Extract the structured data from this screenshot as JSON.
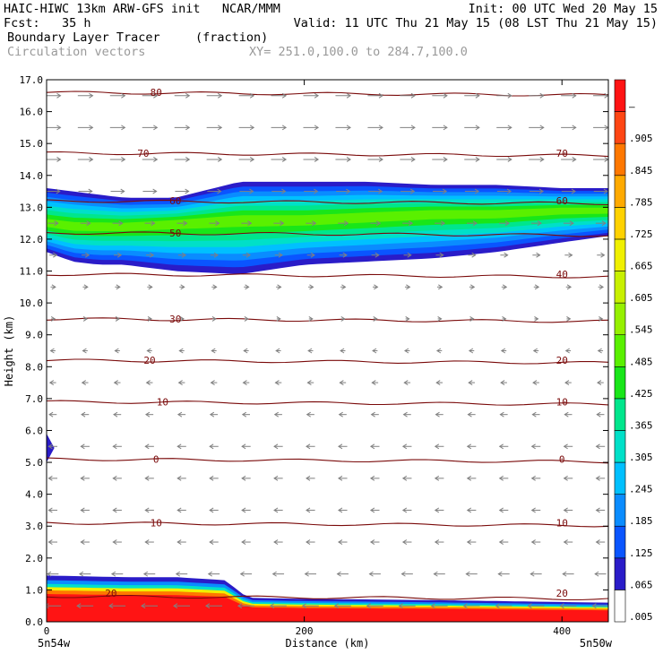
{
  "header": {
    "line1_left": "HAIC-HIWC 13km ARW-GFS init   NCAR/MMM",
    "line1_right": "Init: 00 UTC Wed 20 May 15",
    "line2_left": "Fcst:   35 h",
    "line2_right": "Valid: 11 UTC Thu 21 May 15 (08 LST Thu 21 May 15)",
    "field_name": "Boundary Layer Tracer",
    "field_units": "(fraction)",
    "overlay_name": "Circulation vectors",
    "cross_section": "XY= 251.0,100.0 to 284.7,100.0"
  },
  "chart_data": {
    "type": "heatmap",
    "title": "Boundary Layer Tracer",
    "xlabel": "Distance (km)",
    "ylabel": "Height (km)",
    "xlim": [
      0,
      436
    ],
    "ylim": [
      0,
      17
    ],
    "x_ticks": [
      0,
      200,
      400
    ],
    "x_tick_labels": [
      "0",
      "200",
      "400"
    ],
    "y_ticks": [
      0,
      1,
      2,
      3,
      4,
      5,
      6,
      7,
      8,
      9,
      10,
      11,
      12,
      13,
      14,
      15,
      16,
      17
    ],
    "y_tick_labels": [
      "0.0",
      "1.0",
      "2.0",
      "3.0",
      "4.0",
      "5.0",
      "6.0",
      "7.0",
      "8.0",
      "9.0",
      "10.0",
      "11.0",
      "12.0",
      "13.0",
      "14.0",
      "15.0",
      "16.0",
      "17.0"
    ],
    "x_end_labels": {
      "left": "5n54w",
      "right": "5n50w"
    },
    "colorbar": {
      "labels": [
        ".005",
        ".065",
        ".125",
        ".185",
        ".245",
        ".305",
        ".365",
        ".425",
        ".485",
        ".545",
        ".605",
        ".665",
        ".725",
        ".785",
        ".845",
        ".905",
        "–"
      ],
      "colors": [
        "#ffffff",
        "#2a1cc8",
        "#0a55ff",
        "#0a8cff",
        "#00c0ff",
        "#00e0c8",
        "#00e68c",
        "#19e619",
        "#5af000",
        "#96f000",
        "#c8f000",
        "#f0f000",
        "#ffd200",
        "#ffaa00",
        "#ff7800",
        "#ff4614",
        "#ff1414"
      ]
    },
    "tracer_layers": [
      {
        "name": "upper-plume",
        "x": [
          0,
          20,
          40,
          60,
          100,
          150,
          200,
          250,
          300,
          350,
          400,
          436
        ],
        "bottom_km": [
          11.6,
          11.3,
          11.2,
          11.2,
          11.0,
          10.9,
          11.2,
          11.3,
          11.4,
          11.6,
          11.9,
          12.1
        ],
        "top_km": [
          13.6,
          13.5,
          13.4,
          13.3,
          13.3,
          13.8,
          13.8,
          13.8,
          13.7,
          13.7,
          13.6,
          13.6
        ],
        "core_km": [
          12.5,
          12.4,
          12.4,
          12.4,
          12.5,
          12.6,
          12.6,
          12.7,
          12.8,
          12.8,
          12.9,
          12.9
        ]
      },
      {
        "name": "boundary-layer",
        "x": [
          0,
          60,
          100,
          140,
          150,
          160,
          200,
          250,
          300,
          350,
          400,
          436
        ],
        "top_km": [
          1.45,
          1.4,
          1.4,
          1.3,
          0.9,
          0.75,
          0.72,
          0.7,
          0.68,
          0.65,
          0.62,
          0.6
        ]
      }
    ],
    "contour_series": [
      {
        "name": "80",
        "height_km": 16.6
      },
      {
        "name": "70",
        "height_km": 14.7
      },
      {
        "name": "60",
        "height_km": 13.2
      },
      {
        "name": "50",
        "height_km": 12.2
      },
      {
        "name": "40",
        "height_km": 10.9
      },
      {
        "name": "30",
        "height_km": 9.5
      },
      {
        "name": "20",
        "height_km": 8.2
      },
      {
        "name": "10",
        "height_km": 6.9
      },
      {
        "name": "0",
        "height_km": 5.1
      },
      {
        "name": "10",
        "height_km": 3.1
      },
      {
        "name": "20",
        "height_km": 0.8
      }
    ],
    "contour_label_positions_km": [
      {
        "label": "80",
        "x": 85,
        "y": 16.6
      },
      {
        "label": "70",
        "x": 75,
        "y": 14.7
      },
      {
        "label": "70",
        "x": 400,
        "y": 14.7
      },
      {
        "label": "60",
        "x": 100,
        "y": 13.2
      },
      {
        "label": "60",
        "x": 400,
        "y": 13.2
      },
      {
        "label": "50",
        "x": 100,
        "y": 12.2
      },
      {
        "label": "40",
        "x": 400,
        "y": 10.9
      },
      {
        "label": "30",
        "x": 100,
        "y": 9.5
      },
      {
        "label": "20",
        "x": 80,
        "y": 8.2
      },
      {
        "label": "20",
        "x": 400,
        "y": 8.2
      },
      {
        "label": "10",
        "x": 90,
        "y": 6.9
      },
      {
        "label": "10",
        "x": 400,
        "y": 6.9
      },
      {
        "label": "0",
        "x": 85,
        "y": 5.1
      },
      {
        "label": "0",
        "x": 400,
        "y": 5.1
      },
      {
        "label": "10",
        "x": 85,
        "y": 3.1
      },
      {
        "label": "10",
        "x": 400,
        "y": 3.1
      },
      {
        "label": "20",
        "x": 50,
        "y": 0.9
      },
      {
        "label": "20",
        "x": 400,
        "y": 0.9
      }
    ],
    "vector_field": {
      "description_levels_km": [
        0.5,
        1.5,
        2.5,
        3.5,
        4.5,
        5.5,
        6.5,
        7.5,
        8.5,
        9.5,
        10.5,
        11.5,
        12.5,
        13.5,
        14.5,
        15.5,
        16.5
      ],
      "u_by_level": [
        -1.0,
        -0.6,
        -0.4,
        -0.4,
        -0.4,
        -0.4,
        -0.3,
        -0.2,
        -0.1,
        0.0,
        0.1,
        0.3,
        0.5,
        0.8,
        0.9,
        0.9,
        0.9
      ],
      "x_spacing_km": 25
    },
    "grid": false,
    "legend": "right"
  }
}
